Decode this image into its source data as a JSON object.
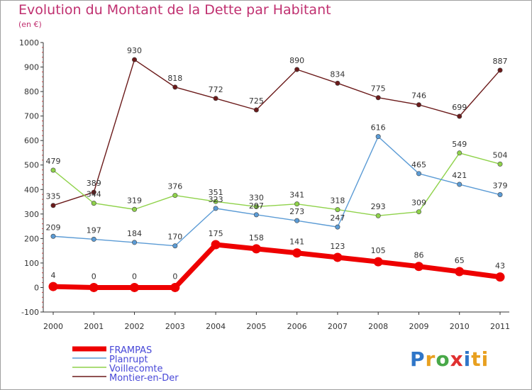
{
  "header": {
    "title": "Evolution du Montant de la Dette par Habitant",
    "unit": "(en €)"
  },
  "logo": {
    "text": "Proxiti"
  },
  "chart_data": {
    "type": "line",
    "title": "Evolution du Montant de la Dette par Habitant",
    "ylabel": "(en €)",
    "xlabel": "",
    "ylim": [
      -100,
      1000
    ],
    "yticks": [
      -100,
      0,
      100,
      200,
      300,
      400,
      500,
      600,
      700,
      800,
      900,
      1000
    ],
    "grid": false,
    "legend": "bottom-left",
    "x": [
      "2000",
      "2001",
      "2002",
      "2003",
      "2004",
      "2005",
      "2006",
      "2007",
      "2008",
      "2009",
      "2010",
      "2011"
    ],
    "series": [
      {
        "name": "FRAMPAS",
        "color": "#ee0000",
        "values": [
          4,
          0,
          0,
          0,
          175,
          158,
          141,
          123,
          105,
          86,
          65,
          43
        ]
      },
      {
        "name": "Planrupt",
        "color": "#5b9bd5",
        "values": [
          209,
          197,
          184,
          170,
          323,
          297,
          273,
          247,
          616,
          465,
          421,
          379
        ]
      },
      {
        "name": "Voillecomte",
        "color": "#8fd24a",
        "values": [
          479,
          344,
          319,
          376,
          351,
          330,
          341,
          318,
          293,
          309,
          549,
          504
        ]
      },
      {
        "name": "Montier-en-Der",
        "color": "#6b1a1a",
        "values": [
          335,
          389,
          930,
          818,
          772,
          725,
          890,
          834,
          775,
          746,
          699,
          887
        ]
      }
    ]
  }
}
